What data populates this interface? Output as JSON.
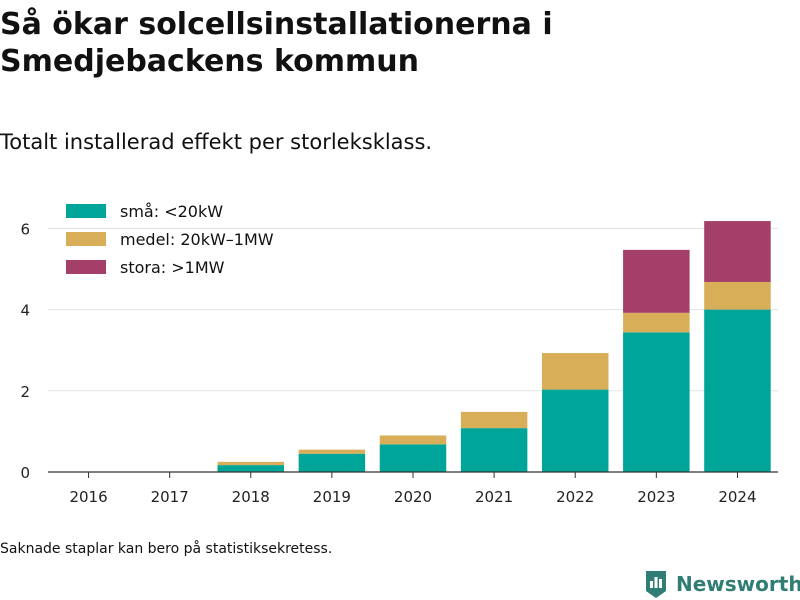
{
  "title": "Så ökar solcellsinstallationerna i Smedjebackens kommun",
  "subtitle": "Totalt installerad effekt per storleksklass.",
  "footnote": "Saknade staplar kan bero på statistiksekretess.",
  "brand": {
    "name": "Newsworthy",
    "icon": "newsworthy-logo-icon",
    "color": "#2f7d74"
  },
  "chart_data": {
    "type": "bar",
    "stacked": true,
    "categories": [
      "2016",
      "2017",
      "2018",
      "2019",
      "2020",
      "2021",
      "2022",
      "2023",
      "2024"
    ],
    "series": [
      {
        "name": "små: <20kW",
        "color": "#00a59a",
        "values": [
          0,
          0,
          0.17,
          0.45,
          0.68,
          1.08,
          2.03,
          3.44,
          4.0
        ]
      },
      {
        "name": "medel: 20kW–1MW",
        "color": "#d9ae58",
        "values": [
          0,
          0,
          0.08,
          0.1,
          0.22,
          0.4,
          0.9,
          0.48,
          0.68
        ]
      },
      {
        "name": "stora: >1MW",
        "color": "#a33f68",
        "values": [
          0,
          0,
          0,
          0,
          0,
          0,
          0,
          1.55,
          1.5
        ]
      }
    ],
    "yticks": [
      0,
      2,
      4,
      6
    ],
    "ylim": [
      0,
      6.6
    ],
    "xlabel": "",
    "ylabel": "",
    "grid": true,
    "legend_position": "top-left"
  }
}
